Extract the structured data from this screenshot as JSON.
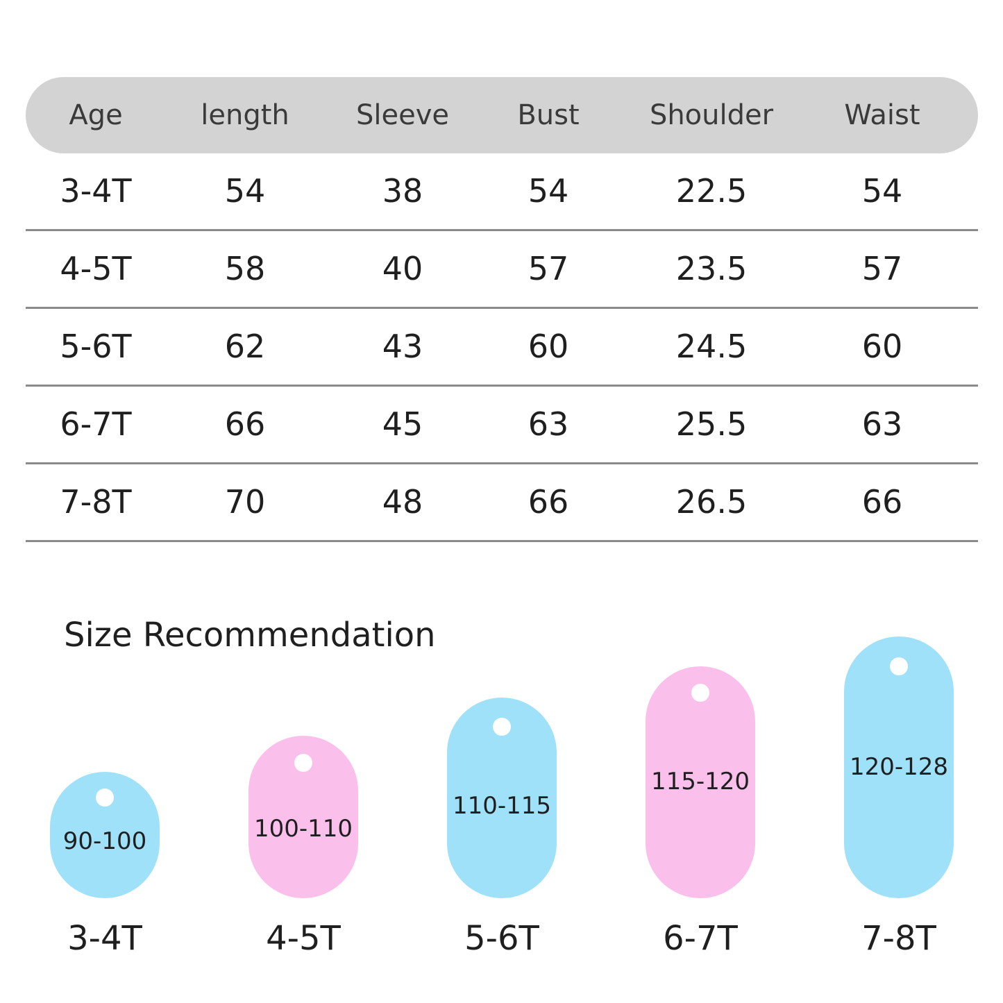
{
  "size_chart": {
    "headers": [
      "Age",
      "length",
      "Sleeve",
      "Bust",
      "Shoulder",
      "Waist"
    ],
    "rows": [
      [
        "3-4T",
        "54",
        "38",
        "54",
        "22.5",
        "54"
      ],
      [
        "4-5T",
        "58",
        "40",
        "57",
        "23.5",
        "57"
      ],
      [
        "5-6T",
        "62",
        "43",
        "60",
        "24.5",
        "60"
      ],
      [
        "6-7T",
        "66",
        "45",
        "63",
        "25.5",
        "63"
      ],
      [
        "7-8T",
        "70",
        "48",
        "66",
        "26.5",
        "66"
      ]
    ]
  },
  "recommendation": {
    "title": "Size Recommendation",
    "items": [
      {
        "height": "90-100",
        "age": "3-4T",
        "color": "#a0e1fa"
      },
      {
        "height": "100-110",
        "age": "4-5T",
        "color": "#fbbfeb"
      },
      {
        "height": "110-115",
        "age": "5-6T",
        "color": "#a0e1fa"
      },
      {
        "height": "115-120",
        "age": "6-7T",
        "color": "#fbbfeb"
      },
      {
        "height": "120-128",
        "age": "7-8T",
        "color": "#a0e1fa"
      }
    ]
  }
}
